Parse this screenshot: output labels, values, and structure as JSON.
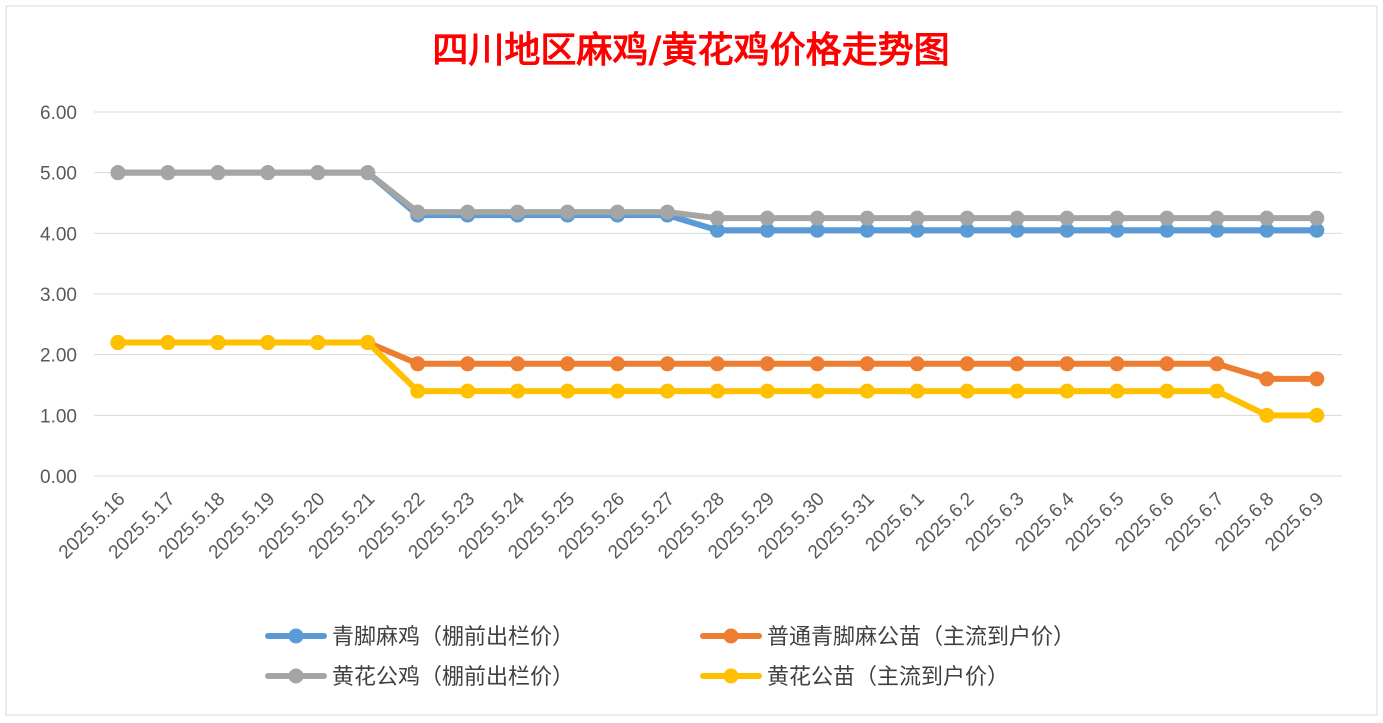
{
  "chart_data": {
    "type": "line",
    "title": "四川地区麻鸡/黄花鸡价格走势图",
    "title_color": "#FF0000",
    "xlabel": "",
    "ylabel": "",
    "ylim": [
      0,
      6
    ],
    "y_ticks": [
      "0.00",
      "1.00",
      "2.00",
      "3.00",
      "4.00",
      "5.00",
      "6.00"
    ],
    "grid": true,
    "legend_position": "bottom",
    "categories": [
      "2025.5.16",
      "2025.5.17",
      "2025.5.18",
      "2025.5.19",
      "2025.5.20",
      "2025.5.21",
      "2025.5.22",
      "2025.5.23",
      "2025.5.24",
      "2025.5.25",
      "2025.5.26",
      "2025.5.27",
      "2025.5.28",
      "2025.5.29",
      "2025.5.30",
      "2025.5.31",
      "2025.6.1",
      "2025.6.2",
      "2025.6.3",
      "2025.6.4",
      "2025.6.5",
      "2025.6.6",
      "2025.6.7",
      "2025.6.8",
      "2025.6.9"
    ],
    "series": [
      {
        "name": "青脚麻鸡（棚前出栏价）",
        "color": "#5B9BD5",
        "values": [
          5.0,
          5.0,
          5.0,
          5.0,
          5.0,
          5.0,
          4.3,
          4.3,
          4.3,
          4.3,
          4.3,
          4.3,
          4.05,
          4.05,
          4.05,
          4.05,
          4.05,
          4.05,
          4.05,
          4.05,
          4.05,
          4.05,
          4.05,
          4.05,
          4.05
        ]
      },
      {
        "name": "普通青脚麻公苗（主流到户价）",
        "color": "#ED7D31",
        "values": [
          2.2,
          2.2,
          2.2,
          2.2,
          2.2,
          2.2,
          1.85,
          1.85,
          1.85,
          1.85,
          1.85,
          1.85,
          1.85,
          1.85,
          1.85,
          1.85,
          1.85,
          1.85,
          1.85,
          1.85,
          1.85,
          1.85,
          1.85,
          1.6,
          1.6
        ]
      },
      {
        "name": "黄花公鸡（棚前出栏价）",
        "color": "#A5A5A5",
        "values": [
          5.0,
          5.0,
          5.0,
          5.0,
          5.0,
          5.0,
          4.35,
          4.35,
          4.35,
          4.35,
          4.35,
          4.35,
          4.25,
          4.25,
          4.25,
          4.25,
          4.25,
          4.25,
          4.25,
          4.25,
          4.25,
          4.25,
          4.25,
          4.25,
          4.25
        ]
      },
      {
        "name": "黄花公苗（主流到户价）",
        "color": "#FFC000",
        "values": [
          2.2,
          2.2,
          2.2,
          2.2,
          2.2,
          2.2,
          1.4,
          1.4,
          1.4,
          1.4,
          1.4,
          1.4,
          1.4,
          1.4,
          1.4,
          1.4,
          1.4,
          1.4,
          1.4,
          1.4,
          1.4,
          1.4,
          1.4,
          1.0,
          1.0
        ]
      }
    ]
  }
}
